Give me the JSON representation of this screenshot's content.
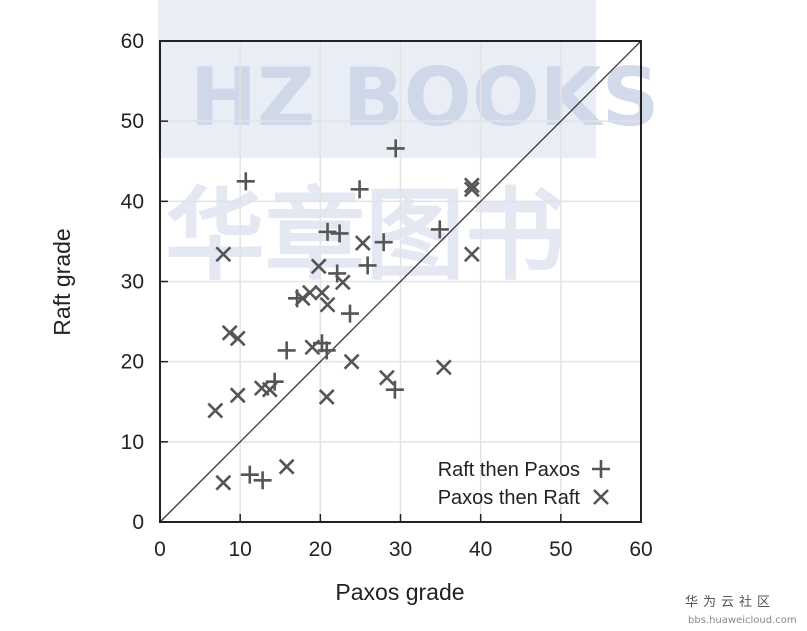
{
  "watermark": {
    "logo_text": "HZ BOOKS",
    "logo_cn": "华章图书",
    "site_name": "华为云社区",
    "site_url": "bbs.huaweicloud.com"
  },
  "chart_data": {
    "type": "scatter",
    "xlabel": "Paxos grade",
    "ylabel": "Raft grade",
    "xlim": [
      0,
      60
    ],
    "ylim": [
      0,
      60
    ],
    "xticks": [
      0,
      10,
      20,
      30,
      40,
      50,
      60
    ],
    "yticks": [
      0,
      10,
      20,
      30,
      40,
      50,
      60
    ],
    "grid": true,
    "reference_line": "y = x",
    "legend_position": "bottom-right",
    "colors": {
      "points": "#555555",
      "grid": "#e3e3e3",
      "axis": "#222222"
    },
    "series": [
      {
        "name": "Raft then Paxos",
        "marker": "plus",
        "points": [
          [
            29.4,
            46.6
          ],
          [
            10.7,
            42.5
          ],
          [
            24.9,
            41.5
          ],
          [
            20.9,
            36.2
          ],
          [
            22.4,
            36.0
          ],
          [
            34.9,
            36.5
          ],
          [
            27.9,
            34.9
          ],
          [
            25.9,
            32.0
          ],
          [
            22.1,
            31.0
          ],
          [
            17.1,
            27.9
          ],
          [
            23.7,
            26.0
          ],
          [
            15.8,
            21.4
          ],
          [
            20.2,
            22.3
          ],
          [
            20.8,
            21.4
          ],
          [
            29.3,
            16.5
          ],
          [
            14.3,
            17.5
          ],
          [
            11.2,
            5.9
          ],
          [
            12.8,
            5.2
          ]
        ]
      },
      {
        "name": "Paxos then Raft",
        "marker": "cross",
        "points": [
          [
            38.9,
            42.0
          ],
          [
            38.9,
            41.5
          ],
          [
            7.9,
            33.4
          ],
          [
            25.3,
            34.8
          ],
          [
            19.8,
            31.9
          ],
          [
            22.8,
            29.9
          ],
          [
            18.7,
            28.6
          ],
          [
            20.2,
            28.6
          ],
          [
            20.9,
            27.1
          ],
          [
            17.8,
            27.9
          ],
          [
            38.9,
            33.4
          ],
          [
            8.7,
            23.6
          ],
          [
            9.7,
            22.9
          ],
          [
            19.0,
            21.8
          ],
          [
            23.9,
            20.0
          ],
          [
            28.3,
            18.0
          ],
          [
            35.4,
            19.3
          ],
          [
            9.7,
            15.8
          ],
          [
            6.9,
            13.9
          ],
          [
            12.7,
            16.7
          ],
          [
            13.7,
            16.5
          ],
          [
            20.8,
            15.6
          ],
          [
            15.8,
            6.9
          ],
          [
            7.9,
            4.9
          ]
        ]
      }
    ]
  }
}
